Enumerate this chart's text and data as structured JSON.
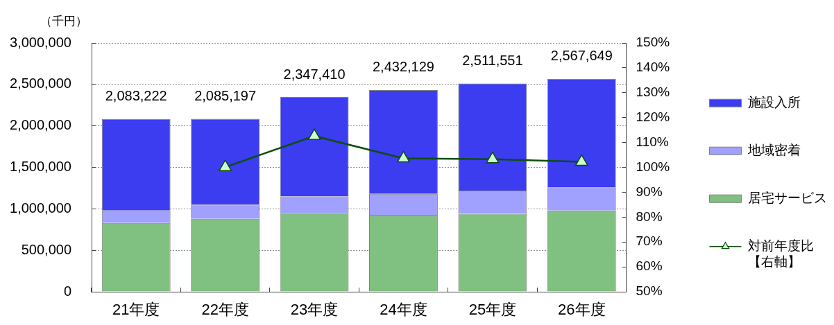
{
  "chart_data": {
    "type": "bar",
    "ylabel": "（千円）",
    "categories": [
      "21年度",
      "22年度",
      "23年度",
      "24年度",
      "25年度",
      "26年度"
    ],
    "series": [
      {
        "name": "居宅サービス",
        "color": "#80c080",
        "values": [
          830000,
          880000,
          950000,
          920000,
          940000,
          980000
        ]
      },
      {
        "name": "地域密着",
        "color": "#a0a0ff",
        "values": [
          150000,
          170000,
          200000,
          260000,
          280000,
          280000
        ]
      },
      {
        "name": "施設入所",
        "color": "#3c3cf0",
        "values": [
          1103222,
          1035197,
          1197410,
          1252129,
          1291551,
          1307649
        ]
      },
      {
        "name": "対前年度比【右軸】",
        "type": "line",
        "axis": "y2",
        "color": "#0d4d0d",
        "values": [
          null,
          100.1,
          112.6,
          103.6,
          103.3,
          102.2
        ]
      }
    ],
    "stacked": true,
    "totals": [
      "2,083,222",
      "2,085,197",
      "2,347,410",
      "2,432,129",
      "2,511,551",
      "2,567,649"
    ],
    "ylim": [
      0,
      3000000
    ],
    "yticks": [
      0,
      {
        "value": 500000,
        "label": "500,000"
      },
      {
        "value": 1000000,
        "label": "1,000,000"
      },
      {
        "value": 1500000,
        "label": "1,500,000"
      },
      {
        "value": 2000000,
        "label": "2,000,000"
      },
      {
        "value": 2500000,
        "label": "2,500,000"
      },
      {
        "value": 3000000,
        "label": "3,000,000"
      }
    ],
    "y2lim": [
      50,
      150
    ],
    "y2ticks": [
      {
        "value": 50,
        "label": "50%"
      },
      {
        "value": 60,
        "label": "60%"
      },
      {
        "value": 70,
        "label": "70%"
      },
      {
        "value": 80,
        "label": "80%"
      },
      {
        "value": 90,
        "label": "90%"
      },
      {
        "value": 100,
        "label": "100%"
      },
      {
        "value": 110,
        "label": "110%"
      },
      {
        "value": 120,
        "label": "120%"
      },
      {
        "value": 130,
        "label": "130%"
      },
      {
        "value": 140,
        "label": "140%"
      },
      {
        "value": 150,
        "label": "150%"
      }
    ],
    "grid": "y",
    "legend": "right",
    "marker": "triangle"
  }
}
